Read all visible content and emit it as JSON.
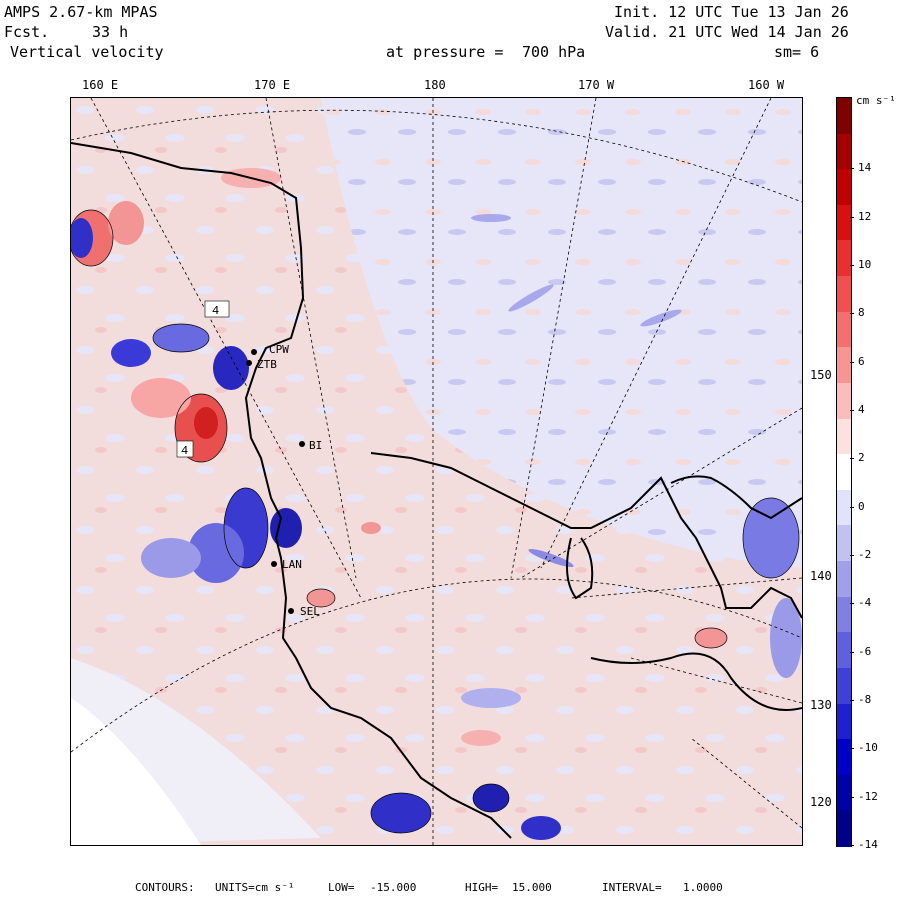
{
  "header": {
    "model": "AMPS 2.67-km MPAS",
    "fcst_label": "Fcst.",
    "fcst_value": "33 h",
    "field": "Vertical velocity",
    "init": "Init. 12 UTC Tue 13 Jan 26",
    "valid": "Valid. 21 UTC Wed 14 Jan 26",
    "pressure_label": "at pressure =",
    "pressure_value": "700 hPa",
    "smoothing": "sm= 6"
  },
  "longitude_labels": [
    "160 E",
    "170 E",
    "180",
    "170 W",
    "160 W"
  ],
  "latitude_labels": [
    "150 W",
    "140 W",
    "130 W",
    "120 W"
  ],
  "colorbar": {
    "units": "cm s⁻¹",
    "tick_labels": [
      "14",
      "12",
      "10",
      "8",
      "6",
      "4",
      "2",
      "0",
      "-2",
      "-4",
      "-6",
      "-8",
      "-10",
      "-12",
      "-14"
    ],
    "colors": [
      "#7f0000",
      "#a30000",
      "#c00000",
      "#d81010",
      "#e83030",
      "#f05050",
      "#f47070",
      "#f79595",
      "#fabcbc",
      "#fde0e0",
      "#ffffff",
      "#e2e2fa",
      "#c2c2f2",
      "#a0a0ea",
      "#8080e2",
      "#6060dc",
      "#4040d8",
      "#2020d0",
      "#0000c8",
      "#0000a8",
      "#000088"
    ]
  },
  "stations": [
    "CPW",
    "ZTB",
    "BI",
    "LAN",
    "SEL"
  ],
  "contour_labels": [
    "4",
    "4"
  ],
  "footer": {
    "contours_label": "CONTOURS:",
    "units_label": "UNITS=cm s⁻¹",
    "low_label": "LOW=",
    "low_value": "-15.000",
    "high_label": "HIGH=",
    "high_value": "15.000",
    "interval_label": "INTERVAL=",
    "interval_value": "1.0000"
  },
  "colors": {
    "background": "#ffffff",
    "land_outline": "#000000",
    "positive": "#f08080",
    "negative": "#6a6ae0"
  }
}
